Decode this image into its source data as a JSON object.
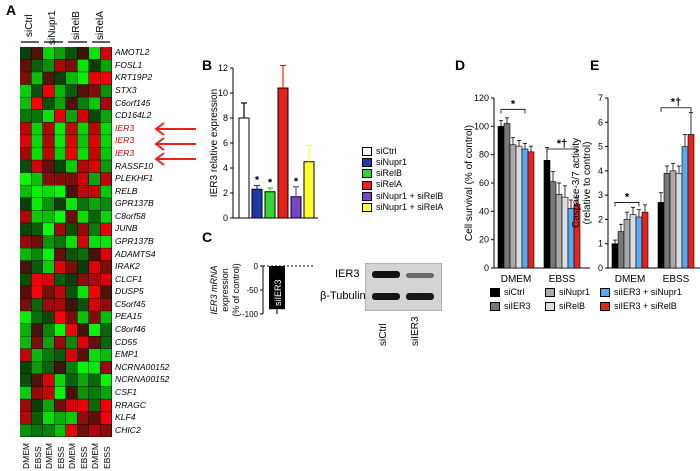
{
  "panels": {
    "A": "A",
    "B": "B",
    "C": "C",
    "D": "D",
    "E": "E"
  },
  "heatmap": {
    "groups": [
      "siCtrl",
      "siNupr1",
      "siRelB",
      "siRelA"
    ],
    "conditions": [
      "DMEM",
      "EBSS",
      "DMEM",
      "EBSS",
      "DMEM",
      "EBSS",
      "DMEM",
      "EBSS"
    ],
    "genes": [
      "AMOTL2",
      "FOSL1",
      "KRT19P2",
      "STX3",
      "C6orf145",
      "CD164L2",
      "IER3",
      "IER3",
      "IER3",
      "RASSF10",
      "PLEKHF1",
      "RELB",
      "GPR137B",
      "C8orf58",
      "JUNB",
      "GPR137B",
      "ADAMTS4",
      "IRAK2",
      "CLCF1",
      "DUSP5",
      "C5orf45",
      "PEA15",
      "C8orf46",
      "CD55",
      "EMP1",
      "NCRNA00152",
      "NCRNA00152",
      "CSF1",
      "RRAGC",
      "KLF4",
      "CHIC2"
    ],
    "highlight_rows": [
      6,
      7,
      8
    ],
    "colors": {
      "up": "#ff1a1a",
      "down": "#22ff22",
      "neutral": "#000000"
    }
  },
  "chart_data": [
    {
      "panel": "B",
      "type": "bar",
      "ylabel": "IER3 relative expression",
      "ylim": [
        0,
        12
      ],
      "yticks": [
        0,
        2,
        4,
        6,
        8,
        10,
        12
      ],
      "categories": [
        "siCtrl",
        "siNupr1",
        "siRelB",
        "siRelA",
        "siNupr1 + siRelB",
        "siNupr1 + siRelA"
      ],
      "values": [
        8.0,
        2.3,
        2.1,
        10.4,
        1.7,
        4.5
      ],
      "errors": [
        1.2,
        0.3,
        0.3,
        1.8,
        0.8,
        1.3
      ],
      "significance": [
        "",
        "*",
        "*",
        "",
        "*",
        ""
      ],
      "colors": [
        "#ffffff",
        "#1f3aa6",
        "#33d633",
        "#e8231e",
        "#7b45c8",
        "#ffff33"
      ]
    },
    {
      "panel": "C",
      "type": "bar",
      "ylabel_line1": "IER3 mRNA",
      "ylabel_line2": "expression",
      "ylabel_line3": "(% of control)",
      "ylim": [
        -100,
        0
      ],
      "yticks": [
        0,
        -50,
        -100
      ],
      "categories": [
        "siIER3"
      ],
      "values": [
        -90
      ],
      "bar_label": "siIER3"
    },
    {
      "panel": "D",
      "type": "bar",
      "ylabel": "Cell survival (% of control)",
      "ylim": [
        0,
        120
      ],
      "yticks": [
        0,
        20,
        40,
        60,
        80,
        100,
        120
      ],
      "groups": [
        "DMEM",
        "EBSS"
      ],
      "series": [
        {
          "name": "siCtrl",
          "values": [
            100,
            76
          ],
          "errors": [
            4,
            9
          ]
        },
        {
          "name": "siIER3",
          "values": [
            102,
            61
          ],
          "errors": [
            4,
            7
          ]
        },
        {
          "name": "siNupr1",
          "values": [
            87,
            52
          ],
          "errors": [
            5,
            8
          ]
        },
        {
          "name": "siRelB",
          "values": [
            86,
            50
          ],
          "errors": [
            4,
            8
          ]
        },
        {
          "name": "siIER3 + siNupr1",
          "values": [
            84,
            42
          ],
          "errors": [
            4,
            6
          ]
        },
        {
          "name": "siIER3 + siRelB",
          "values": [
            82,
            45
          ],
          "errors": [
            4,
            5
          ]
        }
      ],
      "significance": [
        "*",
        "*†"
      ],
      "colors": [
        "#000000",
        "#777777",
        "#a9a9a9",
        "#dcdcdc",
        "#55aaf0",
        "#e8231e"
      ]
    },
    {
      "panel": "E",
      "type": "bar",
      "ylabel_line1": "Caspase-3/7 activity",
      "ylabel_line2": "(relative to control)",
      "ylim": [
        0,
        7
      ],
      "yticks": [
        0,
        1,
        2,
        3,
        4,
        5,
        6,
        7
      ],
      "groups": [
        "DMEM",
        "EBSS"
      ],
      "series": [
        {
          "name": "siCtrl",
          "values": [
            1.0,
            2.7
          ],
          "errors": [
            0.15,
            0.4
          ]
        },
        {
          "name": "siIER3",
          "values": [
            1.5,
            3.9
          ],
          "errors": [
            0.3,
            0.3
          ]
        },
        {
          "name": "siNupr1",
          "values": [
            2.0,
            4.0
          ],
          "errors": [
            0.3,
            0.3
          ]
        },
        {
          "name": "siRelB",
          "values": [
            2.2,
            3.9
          ],
          "errors": [
            0.3,
            0.3
          ]
        },
        {
          "name": "siIER3 + siNupr1",
          "values": [
            2.1,
            5.0
          ],
          "errors": [
            0.3,
            0.5
          ]
        },
        {
          "name": "siIER3 + siRelB",
          "values": [
            2.3,
            5.5
          ],
          "errors": [
            0.3,
            0.9
          ]
        }
      ],
      "significance": [
        "*",
        "*",
        "*†"
      ],
      "colors": [
        "#000000",
        "#777777",
        "#a9a9a9",
        "#dcdcdc",
        "#55aaf0",
        "#e8231e"
      ]
    }
  ],
  "legend_B": [
    "siCtrl",
    "siNupr1",
    "siRelB",
    "siRelA",
    "siNupr1 + siRelB",
    "siNupr1 + siRelA"
  ],
  "legend_DE": [
    "siCtrl",
    "siIER3",
    "siNupr1",
    "siRelB",
    "siIER3 + siNupr1",
    "siIER3 + siRelB"
  ],
  "western": {
    "bands": [
      "IER3",
      "β-Tubulin"
    ],
    "lanes": [
      "siCtrl",
      "siIER3"
    ]
  }
}
